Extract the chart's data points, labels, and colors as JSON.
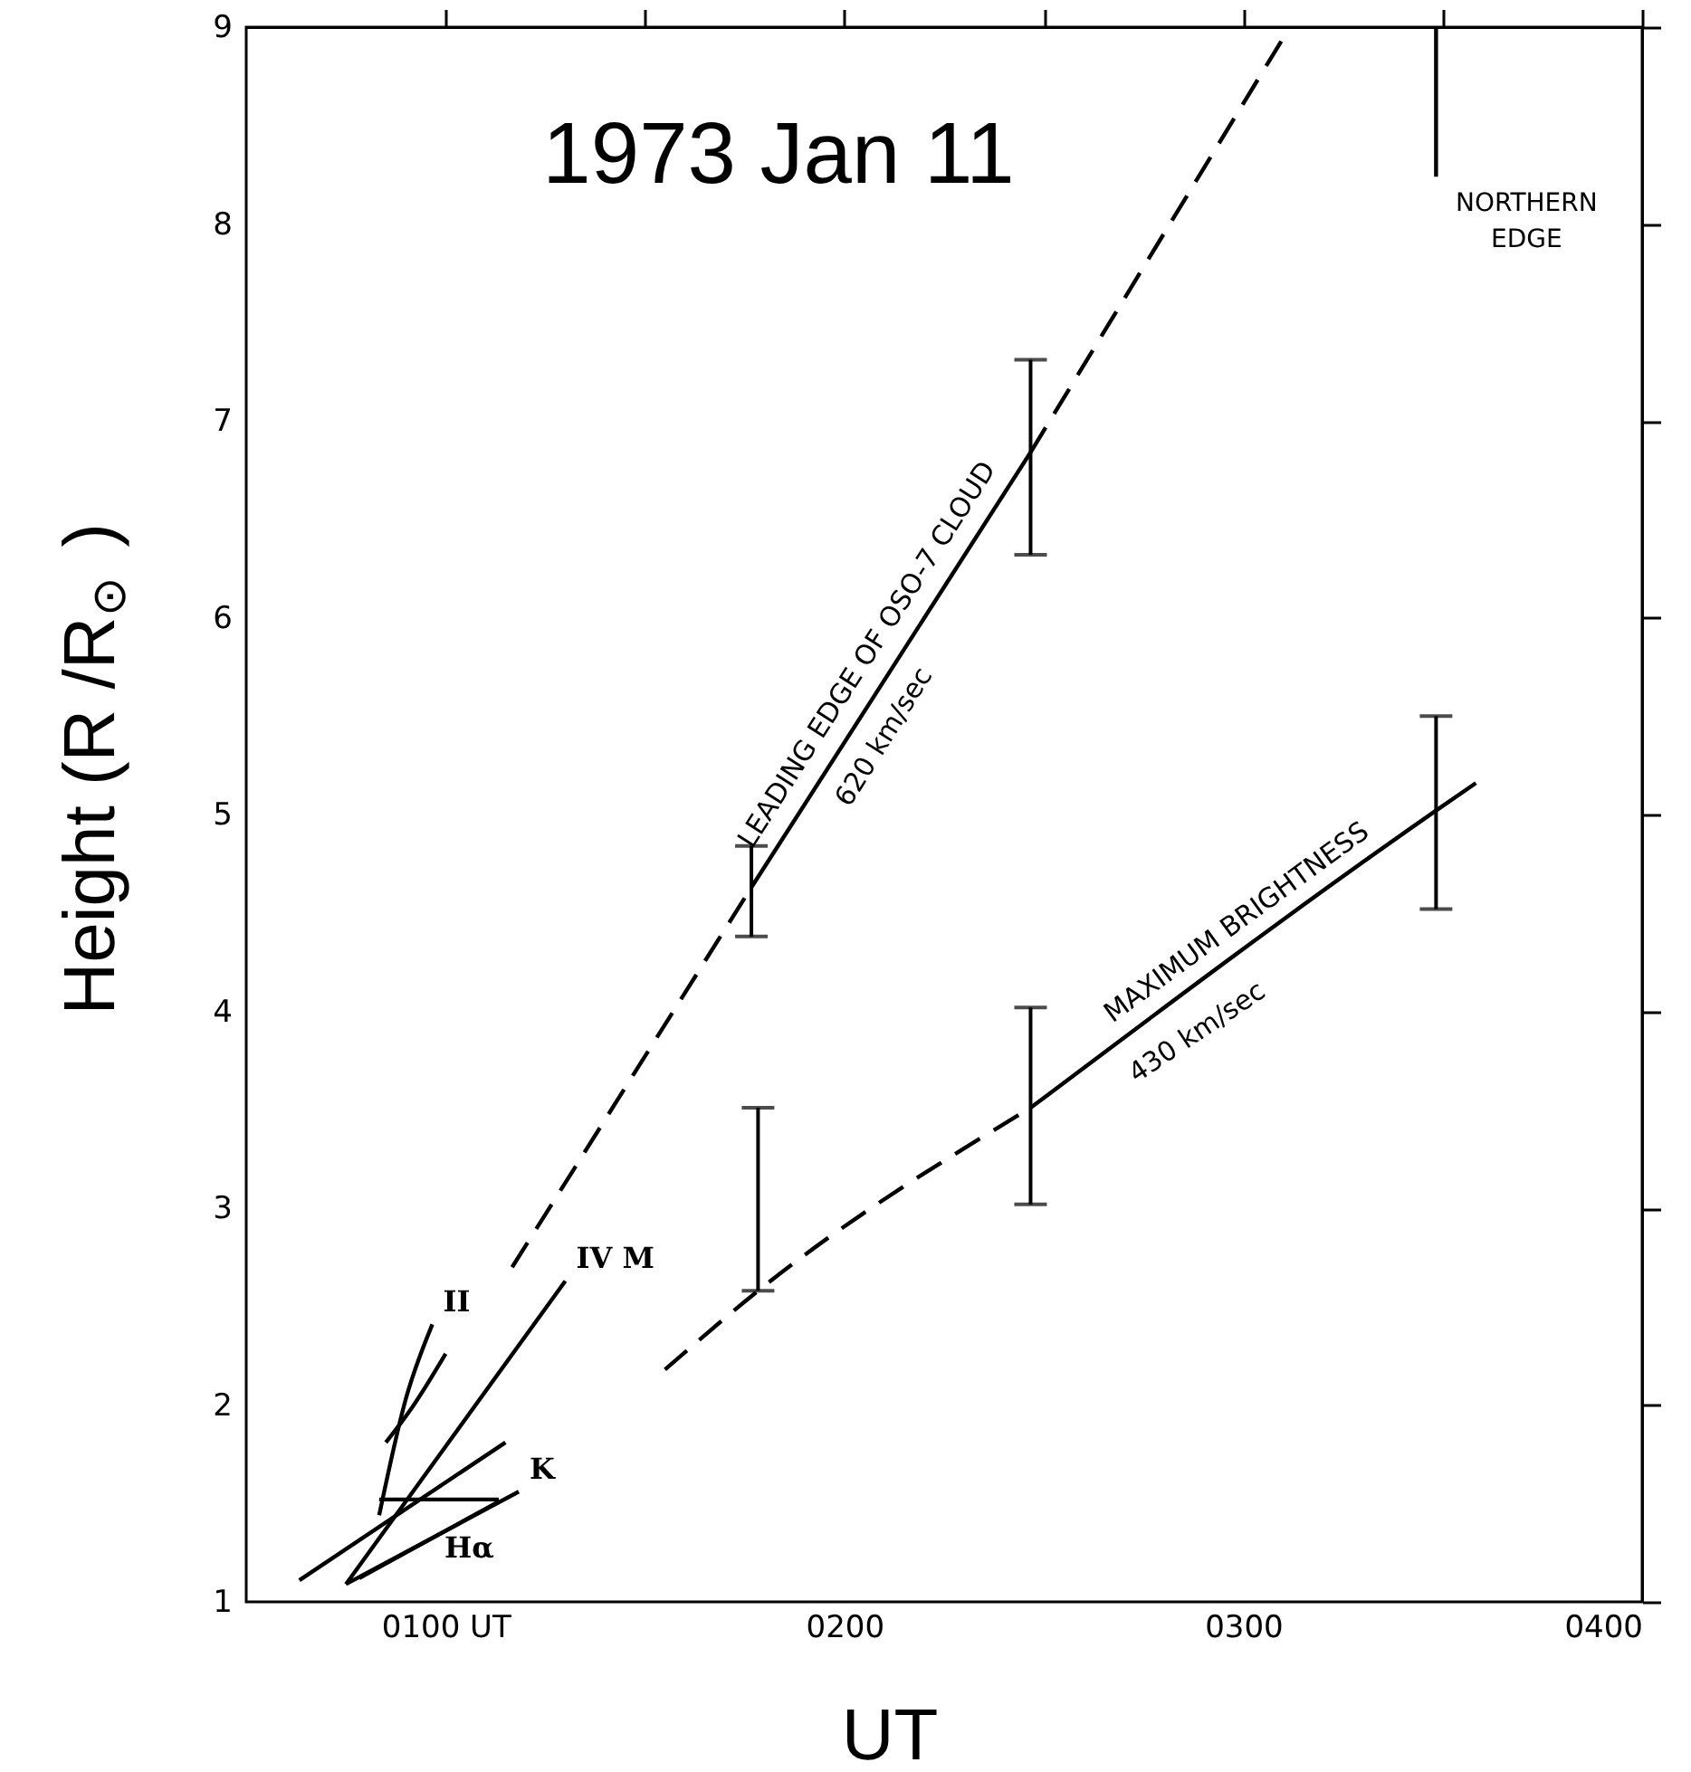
{
  "chart_data": {
    "type": "line",
    "title": "1973 Jan 11",
    "xlabel": "UT",
    "ylabel": "Height (R /R$_{⊙}$)",
    "xlim": [
      "1973-01-11T00:30",
      "1973-01-11T04:00"
    ],
    "xticks": [
      {
        "value": "1973-01-11T01:00",
        "label": "0100 UT"
      },
      {
        "value": "1973-01-11T01:30",
        "label": null
      },
      {
        "value": "1973-01-11T02:00",
        "label": "0200"
      },
      {
        "value": "1973-01-11T02:30",
        "label": null
      },
      {
        "value": "1973-01-11T03:00",
        "label": "0300"
      },
      {
        "value": "1973-01-11T03:30",
        "label": null
      },
      {
        "value": "1973-01-11T04:00",
        "label": "0400"
      }
    ],
    "ylim": [
      1,
      9
    ],
    "yticks": [
      1,
      2,
      3,
      4,
      5,
      6,
      7,
      8,
      9
    ],
    "series": [
      {
        "color": "#000000",
        "line_style": "dashed",
        "x": [
          "1973-01-11T01:10",
          "1973-01-11T01:46"
        ],
        "values": [
          2.7,
          4.63
        ]
      },
      {
        "name": "LEADING EDGE OF OSO-7 CLOUD",
        "color": "#000000",
        "line_style": "solid",
        "x": [
          "1973-01-11T01:46",
          "1973-01-11T02:28"
        ],
        "values": [
          4.63,
          6.84
        ],
        "errors": [
          [
            4.38,
            4.84
          ],
          [
            6.32,
            7.31
          ]
        ]
      },
      {
        "color": "#000000",
        "line_style": "dashed",
        "x": [
          "1973-01-11T02:28",
          "1973-01-11T03:07"
        ],
        "values": [
          6.84,
          9
        ]
      },
      {
        "color": "#000000",
        "line_style": "dashed",
        "x": [
          "1973-01-11T01:33",
          "1973-01-11T01:47",
          "1973-01-11T02:28"
        ],
        "values": [
          2.18,
          2.58,
          3.51
        ],
        "errors": [
          null,
          [
            2.58,
            3.51
          ],
          null
        ]
      },
      {
        "name": "MAXIMUM BRIGHTNESS",
        "color": "#000000",
        "line_style": "solid",
        "x": [
          "1973-01-11T02:28",
          "1973-01-11T03:29",
          "1973-01-11T03:35"
        ],
        "values": [
          3.51,
          5.02,
          5.16
        ],
        "errors": [
          [
            3.02,
            4.02
          ],
          [
            4.52,
            5.5
          ],
          null
        ]
      },
      {
        "color": "#000000",
        "line_style": "solid",
        "x": [
          "1973-01-11T03:29",
          "1973-01-11T03:29"
        ],
        "values": [
          8.24,
          9
        ]
      },
      {
        "name": "II",
        "color": "#000000",
        "line_style": "solid",
        "x": [
          "1973-01-11T00:50",
          "1973-01-11T00:54",
          "1973-01-11T00:58"
        ],
        "values": [
          1.44,
          2.03,
          2.41
        ]
      },
      {
        "color": "#000000",
        "line_style": "solid",
        "x": [
          "1973-01-11T00:51",
          "1973-01-11T00:55",
          "1973-01-11T01:00"
        ],
        "values": [
          1.81,
          1.99,
          2.26
        ]
      },
      {
        "name": "IV M",
        "color": "#000000",
        "line_style": "solid",
        "x": [
          "1973-01-11T00:45",
          "1973-01-11T01:18"
        ],
        "values": [
          1.09,
          2.63
        ]
      },
      {
        "name": "K",
        "color": "#000000",
        "line_style": "solid",
        "x": [
          "1973-01-11T00:45",
          "1973-01-11T01:11"
        ],
        "values": [
          1.09,
          1.56
        ]
      },
      {
        "name": "Hα",
        "color": "#000000",
        "line_style": "solid",
        "x": [
          "1973-01-11T00:47",
          "1973-01-11T01:08"
        ],
        "values": [
          1.12,
          1.51
        ]
      },
      {
        "color": "#000000",
        "line_style": "solid",
        "x": [
          "1973-01-11T00:38",
          "1973-01-11T01:09"
        ],
        "values": [
          1.11,
          1.81
        ]
      },
      {
        "color": "#000000",
        "line_style": "solid",
        "x": [
          "1973-01-11T00:50",
          "1973-01-11T01:08"
        ],
        "values": [
          1.52,
          1.52
        ]
      }
    ],
    "annotations": [
      "620 km/sec",
      "430 km/sec",
      {
        "text": "NORTHERN EDGE",
        "x": "1973-01-11T03:29",
        "y": 8.24
      }
    ]
  }
}
